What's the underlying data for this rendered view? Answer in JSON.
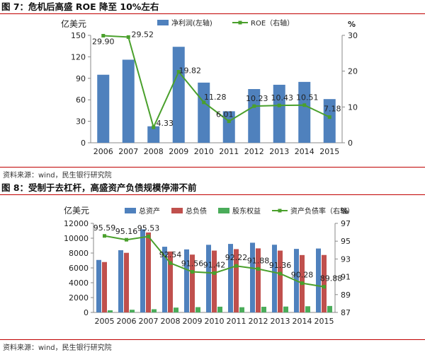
{
  "figures": [
    {
      "title": "图 7：危机后高盛 ROE 降至 10%左右",
      "source": "资料来源：wind，民生银行研究院"
    },
    {
      "title": "图 8：受制于去杠杆，高盛资产负债规模停滞不前",
      "source": "资料来源：wind，民生银行研究院"
    }
  ],
  "colors": {
    "bar_blue": "#4f81bd",
    "bar_red": "#c0504d",
    "bar_green": "#4aac5a",
    "line_green": "#4aa02c",
    "title_rule": "#c00000"
  },
  "chart_data": [
    {
      "type": "bar",
      "combo_line": true,
      "categories": [
        "2006",
        "2007",
        "2008",
        "2009",
        "2010",
        "2011",
        "2012",
        "2013",
        "2014",
        "2015"
      ],
      "ylabel": "亿美元",
      "y2label": "%",
      "ylim": [
        0,
        150
      ],
      "yticks": [
        0,
        30,
        60,
        90,
        120,
        150
      ],
      "y2lim": [
        0,
        30
      ],
      "y2ticks": [
        0,
        10,
        20,
        30
      ],
      "grid": false,
      "legend_position": "top-right",
      "series": [
        {
          "name": "净利润(左轴)",
          "kind": "bar",
          "axis": "left",
          "values": [
            95,
            116,
            23,
            134,
            84,
            44,
            75,
            81,
            85,
            61
          ]
        },
        {
          "name": "ROE（右轴）",
          "kind": "line",
          "axis": "right",
          "values": [
            29.9,
            29.52,
            4.33,
            19.82,
            11.28,
            6.01,
            10.23,
            10.43,
            10.51,
            7.18
          ],
          "labels": [
            "29.90",
            "29.52",
            "4.33",
            "19.82",
            "11.28",
            "6.01",
            "10.23",
            "10.43",
            "10.51",
            "7.18"
          ]
        }
      ]
    },
    {
      "type": "bar",
      "combo_line": true,
      "categories": [
        "2005",
        "2006",
        "2007",
        "2008",
        "2009",
        "2010",
        "2011",
        "2012",
        "2013",
        "2014",
        "2015"
      ],
      "ylabel": "亿美元",
      "y2label": "%",
      "ylim": [
        0,
        12000
      ],
      "yticks": [
        0,
        2000,
        4000,
        6000,
        8000,
        10000,
        12000
      ],
      "y2lim": [
        87,
        97
      ],
      "y2ticks": [
        87,
        89,
        91,
        93,
        95,
        97
      ],
      "grid": false,
      "legend_position": "top",
      "series": [
        {
          "name": "总资产",
          "kind": "bar",
          "axis": "left",
          "values": [
            7070,
            8380,
            11200,
            8850,
            8490,
            9110,
            9230,
            9390,
            9120,
            8560,
            8610
          ]
        },
        {
          "name": "总负债",
          "kind": "bar",
          "axis": "left",
          "values": [
            6790,
            8030,
            10770,
            8210,
            7790,
            8330,
            8530,
            8630,
            8330,
            7730,
            7740
          ]
        },
        {
          "name": "股东权益",
          "kind": "bar",
          "axis": "left",
          "values": [
            280,
            360,
            430,
            650,
            710,
            770,
            700,
            760,
            790,
            830,
            870
          ]
        },
        {
          "name": "资产负债率（右轴）",
          "kind": "line",
          "axis": "right",
          "values": [
            95.59,
            95.16,
            95.53,
            92.54,
            91.56,
            91.42,
            92.22,
            91.88,
            91.36,
            90.28,
            89.88
          ],
          "labels": [
            "95.59",
            "95.16",
            "95.53",
            "92.54",
            "91.56",
            "91.42",
            "92.22",
            "91.88",
            "91.36",
            "90.28",
            "89.88"
          ]
        }
      ]
    }
  ]
}
